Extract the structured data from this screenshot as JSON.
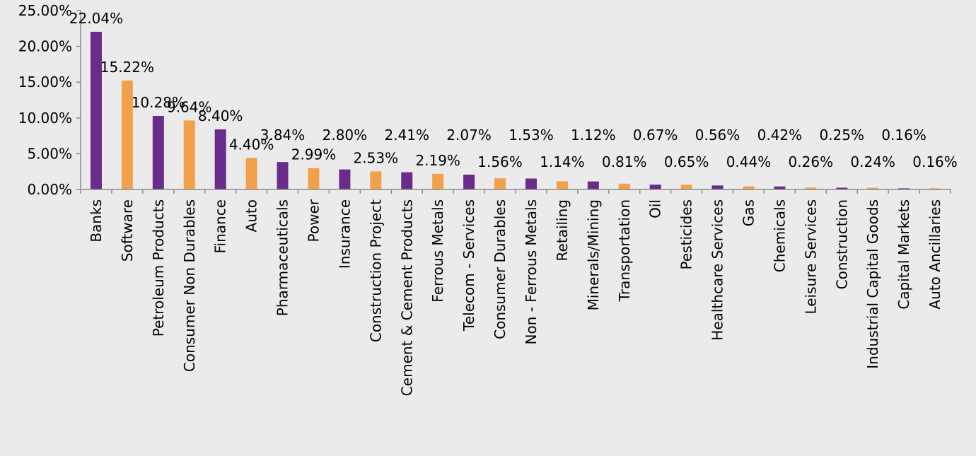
{
  "chart_data": {
    "type": "bar",
    "categories": [
      "Banks",
      "Software",
      "Petroleum Products",
      "Consumer Non Durables",
      "Finance",
      "Auto",
      "Pharmaceuticals",
      "Power",
      "Insurance",
      "Construction Project",
      "Cement & Cement Products",
      "Ferrous Metals",
      "Telecom - Services",
      "Consumer Durables",
      "Non - Ferrous Metals",
      "Retailing",
      "Minerals/Mining",
      "Transportation",
      "Oil",
      "Pesticides",
      "Healthcare Services",
      "Gas",
      "Chemicals",
      "Leisure Services",
      "Construction",
      "Industrial Capital Goods",
      "Capital Markets",
      "Auto Ancillaries"
    ],
    "values": [
      22.04,
      15.22,
      10.28,
      9.64,
      8.4,
      4.4,
      3.84,
      2.99,
      2.8,
      2.53,
      2.41,
      2.19,
      2.07,
      1.56,
      1.53,
      1.14,
      1.12,
      0.81,
      0.67,
      0.65,
      0.56,
      0.44,
      0.42,
      0.26,
      0.25,
      0.24,
      0.16,
      0.16
    ],
    "data_labels": [
      "22.04%",
      "15.22%",
      "10.28%",
      "9.64%",
      "8.40%",
      "4.40%",
      "3.84%",
      "2.99%",
      "2.80%",
      "2.53%",
      "2.41%",
      "2.19%",
      "2.07%",
      "1.56%",
      "1.53%",
      "1.14%",
      "1.12%",
      "0.81%",
      "0.67%",
      "0.65%",
      "0.56%",
      "0.44%",
      "0.42%",
      "0.26%",
      "0.25%",
      "0.24%",
      "0.16%",
      "0.16%"
    ],
    "yticks": [
      0,
      5,
      10,
      15,
      20,
      25
    ],
    "ytick_labels": [
      "0.00%",
      "5.00%",
      "10.00%",
      "15.00%",
      "20.00%",
      "25.00%"
    ],
    "ylim": [
      0,
      25
    ],
    "grid": false,
    "colors": {
      "odd": "#6a2c8a",
      "even": "#f3a04b",
      "axis": "#8c8c8c",
      "background": "#ebebeb"
    },
    "bar_color_pattern": [
      "odd",
      "even"
    ]
  }
}
